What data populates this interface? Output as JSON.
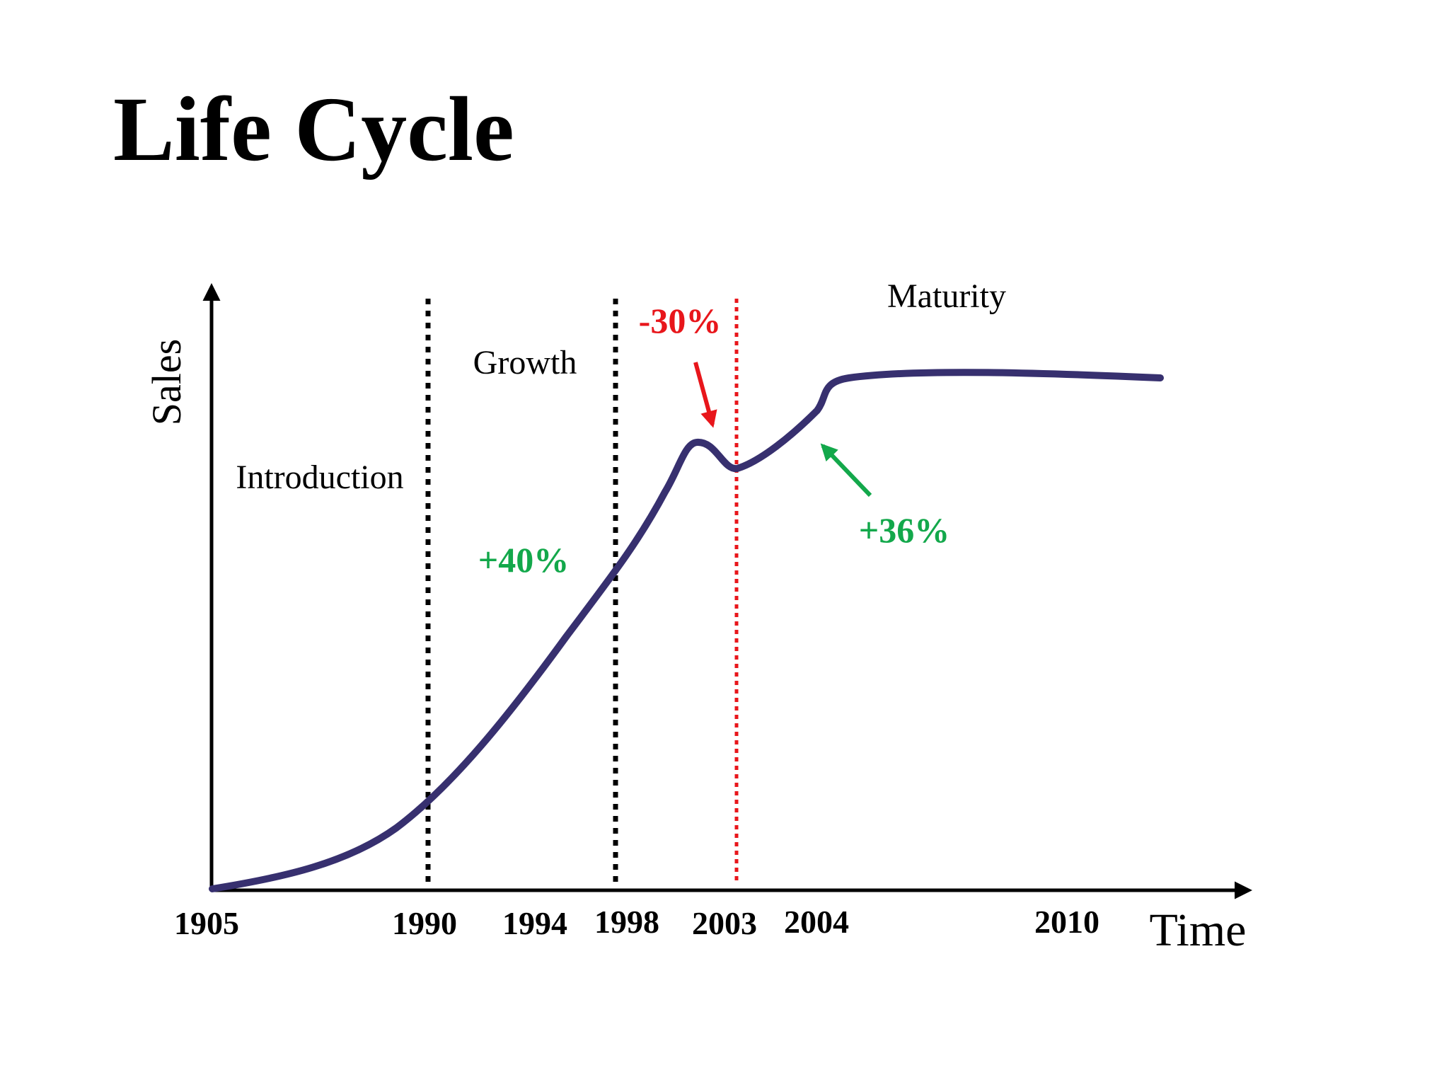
{
  "title": "Life Cycle",
  "colors": {
    "curve": "#37306F",
    "axis": "#000000",
    "divider_black": "#000000",
    "divider_red": "#E8161B",
    "negative": "#E8161B",
    "positive": "#13A84B",
    "text": "#000000"
  },
  "axes": {
    "y_label": "Sales",
    "x_label": "Time"
  },
  "tick_labels": [
    "1905",
    "1990",
    "1994",
    "1998",
    "2003",
    "2004",
    "2010"
  ],
  "stages": {
    "introduction": "Introduction",
    "growth": "Growth",
    "maturity": "Maturity"
  },
  "annotations": {
    "growth_rate": "+40%",
    "decline_rate": "-30%",
    "recovery_rate": "+36%"
  }
}
